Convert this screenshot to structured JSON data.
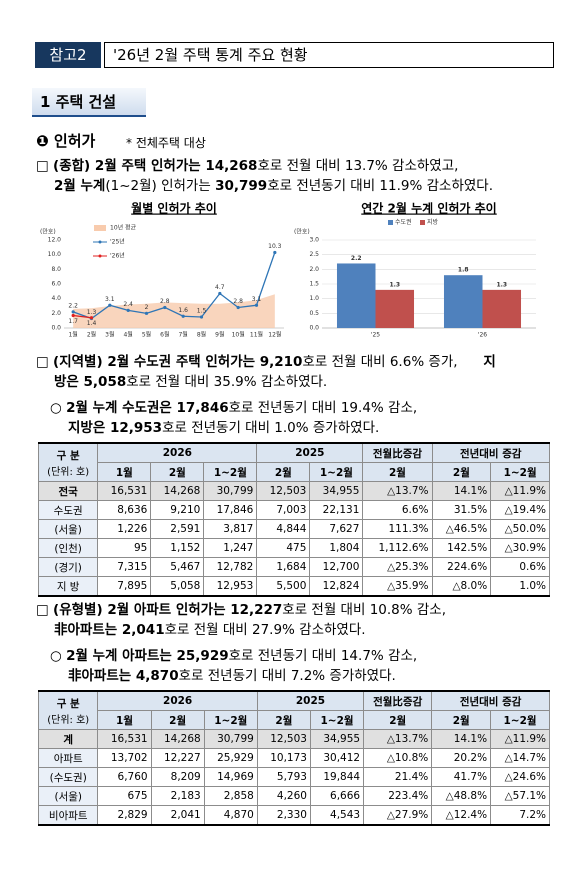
{
  "header": {
    "tag": "참고2",
    "title": "'26년 2월 주택 통계 주요 현황"
  },
  "section": "1 주택 건설",
  "subsection": {
    "title": "❶ 인허가",
    "note": "* 전체주택 대상"
  },
  "paragraphs": [
    [
      [
        "□ ",
        {
          "text": "(종합) 2월 주택 인허가는 14,268",
          "bold": true
        },
        "호로 전월 대비 13.7% 감소하였고,"
      ],
      [
        {
          "text": "2월 누계",
          "bold": true
        },
        "(1~2월) 인허가는 ",
        {
          "text": "30,799",
          "bold": true
        },
        "호로 전년동기 대비 11.9% 감소하였다."
      ]
    ],
    [
      [
        "□ ",
        {
          "text": "(지역별) 2월 수도권 주택 인허가는 9,210",
          "bold": true
        },
        "호로 전월 대비 6.6% 증가,      ",
        {
          "text": "지",
          "bold": true
        }
      ],
      [
        {
          "text": "방은 5,058",
          "bold": true
        },
        "호로 전월 대비 35.9% 감소하였다."
      ]
    ],
    [
      [
        "○ ",
        {
          "text": "2월 누계 수도권은 17,846",
          "bold": true
        },
        "호로 전년동기 대비 19.4% 감소,"
      ],
      [
        {
          "text": "지방은 12,953",
          "bold": true
        },
        "호로 전년동기 대비 1.0% 증가하였다."
      ]
    ],
    [
      [
        "□ ",
        {
          "text": "(유형별) 2월 아파트 인허가는 12,227",
          "bold": true
        },
        "호로 전월 대비 10.8% 감소,"
      ],
      [
        {
          "text": "非아파트는 2,041",
          "bold": true
        },
        "호로 전월 대비 27.9% 감소하였다."
      ]
    ],
    [
      [
        "○ ",
        {
          "text": "2월 누계 아파트는 25,929",
          "bold": true
        },
        "호로 전년동기 대비 14.7% 감소,"
      ],
      [
        {
          "text": "非아파트는 4,870",
          "bold": true
        },
        "호로 전년동기 대비 7.2% 증가하였다."
      ]
    ]
  ],
  "chart_data": [
    {
      "type": "line",
      "title": "월별 인허가 추이",
      "y_label": "(만호)",
      "categories": [
        "1월",
        "2월",
        "3월",
        "4월",
        "5월",
        "6월",
        "7월",
        "8월",
        "9월",
        "10월",
        "11월",
        "12월"
      ],
      "ylim": [
        0,
        12
      ],
      "yticks": [
        {
          "value": 0,
          "label": "0.0"
        },
        {
          "value": 2,
          "label": "2.0"
        },
        {
          "value": 4,
          "label": "4.0"
        },
        {
          "value": 6,
          "label": "6.0"
        },
        {
          "value": 8,
          "label": "8.0"
        },
        {
          "value": 10,
          "label": "10.0"
        },
        {
          "value": 12,
          "label": "12.0"
        }
      ],
      "grid": false,
      "series": [
        {
          "name": "10년 평균",
          "kind": "area",
          "color": "#f8cbad",
          "values": [
            2.6,
            2.7,
            3.0,
            3.2,
            3.3,
            3.5,
            3.4,
            3.3,
            3.3,
            3.5,
            3.8,
            4.6
          ]
        },
        {
          "name": "'25년",
          "color": "#2e75b6",
          "data_labels": true,
          "values": [
            2.2,
            1.3,
            3.1,
            2.4,
            2.0,
            2.8,
            1.6,
            1.5,
            4.7,
            2.8,
            3.1,
            10.3
          ]
        },
        {
          "name": "'26년",
          "color": "#e02020",
          "data_labels": true,
          "values": [
            1.7,
            1.4,
            null,
            null,
            null,
            null,
            null,
            null,
            null,
            null,
            null,
            null
          ]
        }
      ]
    },
    {
      "type": "bar",
      "title": "연간 2월 누계 인허가 추이",
      "y_label": "(만호)",
      "categories": [
        "'25",
        "'26"
      ],
      "ylim": [
        0,
        3
      ],
      "yticks": [
        {
          "value": 0,
          "label": "0.0"
        },
        0.5,
        {
          "value": 1,
          "label": "1.0"
        },
        1.5,
        {
          "value": 2,
          "label": "2.0"
        },
        2.5,
        {
          "value": 3,
          "label": "3.0"
        }
      ],
      "grid": true,
      "series": [
        {
          "name": "수도권",
          "color": "#4f81bd",
          "data_labels": true,
          "values": [
            2.2,
            1.8
          ]
        },
        {
          "name": "지방",
          "color": "#c0504d",
          "data_labels": true,
          "values": [
            1.3,
            1.3
          ]
        }
      ]
    }
  ],
  "tables": [
    {
      "corner": "구 분",
      "unit": "(단위: 호)",
      "years": [
        "2026",
        "2025"
      ],
      "groups": [
        "전월比증감",
        "전년대비 증감"
      ],
      "subheads": [
        "1월",
        "2월",
        "1~2월",
        "2월",
        "1~2월",
        "2월",
        "2월",
        "1~2월"
      ],
      "rows": [
        [
          "전국",
          "16,531",
          "14,268",
          "30,799",
          "12,503",
          "34,955",
          "△13.7%",
          "14.1%",
          "△11.9%"
        ],
        [
          "수도권",
          "8,636",
          "9,210",
          "17,846",
          "7,003",
          "22,131",
          "6.6%",
          "31.5%",
          "△19.4%"
        ],
        [
          "(서울)",
          "1,226",
          "2,591",
          "3,817",
          "4,844",
          "7,627",
          "111.3%",
          "△46.5%",
          "△50.0%"
        ],
        [
          "(인천)",
          "95",
          "1,152",
          "1,247",
          "475",
          "1,804",
          "1,112.6%",
          "142.5%",
          "△30.9%"
        ],
        [
          "(경기)",
          "7,315",
          "5,467",
          "12,782",
          "1,684",
          "12,700",
          "△25.3%",
          "224.6%",
          "0.6%"
        ],
        [
          "지 방",
          "7,895",
          "5,058",
          "12,953",
          "5,500",
          "12,824",
          "△35.9%",
          "△8.0%",
          "1.0%"
        ]
      ]
    },
    {
      "corner": "구 분",
      "unit": "(단위: 호)",
      "years": [
        "2026",
        "2025"
      ],
      "groups": [
        "전월比증감",
        "전년대비 증감"
      ],
      "subheads": [
        "1월",
        "2월",
        "1~2월",
        "2월",
        "1~2월",
        "2월",
        "2월",
        "1~2월"
      ],
      "rows": [
        [
          "계",
          "16,531",
          "14,268",
          "30,799",
          "12,503",
          "34,955",
          "△13.7%",
          "14.1%",
          "△11.9%"
        ],
        [
          "아파트",
          "13,702",
          "12,227",
          "25,929",
          "10,173",
          "30,412",
          "△10.8%",
          "20.2%",
          "△14.7%"
        ],
        [
          "(수도권)",
          "6,760",
          "8,209",
          "14,969",
          "5,793",
          "19,844",
          "21.4%",
          "41.7%",
          "△24.6%"
        ],
        [
          "(서울)",
          "675",
          "2,183",
          "2,858",
          "4,260",
          "6,666",
          "223.4%",
          "△48.8%",
          "△57.1%"
        ],
        [
          "비아파트",
          "2,829",
          "2,041",
          "4,870",
          "2,330",
          "4,543",
          "△27.9%",
          "△12.4%",
          "7.2%"
        ]
      ]
    }
  ]
}
